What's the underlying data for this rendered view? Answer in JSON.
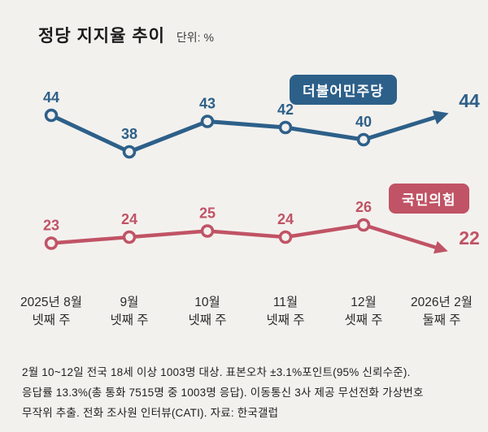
{
  "colors": {
    "background": "#f3f1ee",
    "text": "#1f1f1f",
    "axis_label": "#2b2b2b"
  },
  "title": "정당 지지율 추이",
  "unit_label": "단위: %",
  "chart_data": {
    "type": "line",
    "title": "정당 지지율 추이",
    "unit": "%",
    "categories": [
      [
        "2025년 8월",
        "넷째 주"
      ],
      [
        "9월",
        "넷째 주"
      ],
      [
        "10월",
        "넷째 주"
      ],
      [
        "11월",
        "넷째 주"
      ],
      [
        "12월",
        "셋째 주"
      ],
      [
        "2026년 2월",
        "둘째 주"
      ]
    ],
    "series": [
      {
        "name": "더불어민주당",
        "color": "#2d6089",
        "values": [
          44,
          38,
          43,
          42,
          40,
          44
        ]
      },
      {
        "name": "국민의힘",
        "color": "#c05365",
        "values": [
          23,
          24,
          25,
          24,
          26,
          22
        ]
      }
    ],
    "ylim": [
      20,
      48
    ],
    "grid": false,
    "legend_position": "inline-badges",
    "end_style": "arrow"
  },
  "footnote_lines": [
    "2월 10~12일 전국 18세 이상 1003명 대상.  표본오차 ±3.1%포인트(95% 신뢰수준).",
    "응답률 13.3%(총 통화 7515명 중 1003명 응답).  이동통신 3사 제공 무선전화 가상번호",
    "무작위 추출. 전화 조사원 인터뷰(CATI).   자료: 한국갤럽"
  ]
}
